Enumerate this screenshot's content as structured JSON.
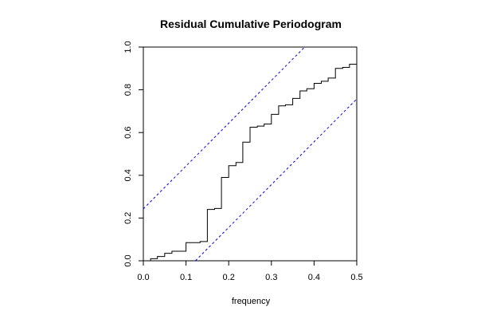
{
  "chart_data": {
    "type": "line",
    "title": "Residual Cumulative Periodogram",
    "xlabel": "frequency",
    "ylabel": "",
    "xlim": [
      0,
      0.5
    ],
    "ylim": [
      0,
      1
    ],
    "x_ticks": [
      "0.0",
      "0.1",
      "0.2",
      "0.3",
      "0.4",
      "0.5"
    ],
    "y_ticks": [
      "0.0",
      "0.2",
      "0.4",
      "0.6",
      "0.8",
      "1.0"
    ],
    "grid": false,
    "series": [
      {
        "style": "step",
        "color": "#000000",
        "x": [
          0.0,
          0.017,
          0.033,
          0.05,
          0.067,
          0.1,
          0.133,
          0.15,
          0.167,
          0.183,
          0.2,
          0.217,
          0.233,
          0.25,
          0.267,
          0.283,
          0.3,
          0.317,
          0.333,
          0.35,
          0.367,
          0.383,
          0.4,
          0.417,
          0.433,
          0.45,
          0.467,
          0.483,
          0.5
        ],
        "y": [
          0.0,
          0.01,
          0.02,
          0.035,
          0.045,
          0.085,
          0.09,
          0.24,
          0.245,
          0.39,
          0.445,
          0.46,
          0.555,
          0.625,
          0.63,
          0.64,
          0.685,
          0.725,
          0.73,
          0.76,
          0.795,
          0.805,
          0.83,
          0.84,
          0.855,
          0.9,
          0.905,
          0.92,
          1.0
        ]
      },
      {
        "style": "dashed",
        "color": "#0000ff",
        "x": [
          0.0,
          0.378
        ],
        "y": [
          0.243,
          1.0
        ]
      },
      {
        "style": "dashed",
        "color": "#0000ff",
        "x": [
          0.122,
          0.5
        ],
        "y": [
          0.0,
          0.757
        ]
      }
    ]
  }
}
